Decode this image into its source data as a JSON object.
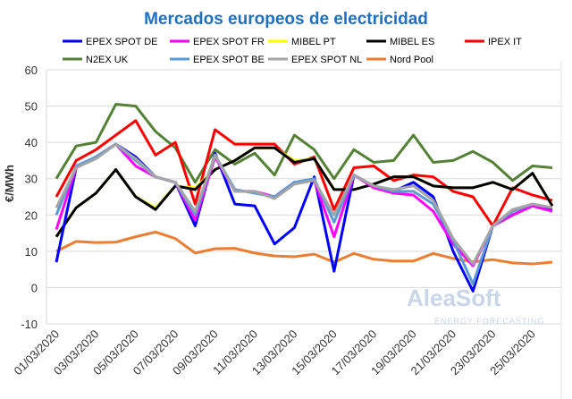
{
  "chart_data": {
    "type": "line",
    "title": "Mercados europeos de electricidad",
    "ylabel": "€/MWh",
    "xlabel": "",
    "ylim": [
      -10,
      60
    ],
    "yticks": [
      -10,
      0,
      10,
      20,
      30,
      40,
      50,
      60
    ],
    "grid": true,
    "legend_placement": "top",
    "x": [
      "01/03/2020",
      "02/03/2020",
      "03/03/2020",
      "04/03/2020",
      "05/03/2020",
      "06/03/2020",
      "07/03/2020",
      "08/03/2020",
      "09/03/2020",
      "10/03/2020",
      "11/03/2020",
      "12/03/2020",
      "13/03/2020",
      "14/03/2020",
      "15/03/2020",
      "16/03/2020",
      "17/03/2020",
      "18/03/2020",
      "19/03/2020",
      "20/03/2020",
      "21/03/2020",
      "22/03/2020",
      "23/03/2020",
      "24/03/2020",
      "25/03/2020",
      "26/03/2020"
    ],
    "xtick_labels": [
      "01/03/2020",
      "03/03/2020",
      "05/03/2020",
      "07/03/2020",
      "09/03/2020",
      "11/03/2020",
      "13/03/2020",
      "15/03/2020",
      "17/03/2020",
      "19/03/2020",
      "21/03/2020",
      "23/03/2020",
      "25/03/2020"
    ],
    "series": [
      {
        "name": "Nord Pool",
        "color": "#ed7d31",
        "values": [
          10,
          12.7,
          12.4,
          12.5,
          14,
          15.3,
          13.5,
          9.5,
          10.7,
          10.8,
          9.5,
          8.7,
          8.5,
          9.2,
          7,
          9.4,
          7.8,
          7.3,
          7.3,
          9.4,
          8,
          7.1,
          7.7,
          6.8,
          6.5,
          7
        ]
      },
      {
        "name": "N2EX UK",
        "color": "#548235",
        "values": [
          30,
          39,
          40,
          50.5,
          50,
          43,
          38.5,
          29,
          38,
          34,
          37,
          31,
          42,
          38,
          30,
          38,
          34.5,
          35,
          42,
          34.5,
          35,
          37.5,
          34.5,
          29.5,
          33.5,
          33
        ]
      },
      {
        "name": "IPEX IT",
        "color": "#ff0000",
        "values": [
          25,
          35,
          38,
          42,
          46,
          36.5,
          40,
          23,
          43.5,
          39.5,
          39.5,
          39.5,
          34,
          36,
          21.5,
          33,
          33.5,
          29.5,
          31,
          30.5,
          26.5,
          25,
          17,
          27.5,
          25.5,
          24
        ]
      },
      {
        "name": "MIBEL PT",
        "color": "#ffff00",
        "values": [
          14,
          22,
          26,
          32.5,
          25,
          22,
          28,
          27.5,
          32.5,
          35,
          38.5,
          38.5,
          35,
          35.5,
          27,
          27,
          28.5,
          30.5,
          30.5,
          28,
          27.5,
          27.5,
          29,
          27,
          31.5,
          22.5
        ]
      },
      {
        "name": "MIBEL ES",
        "color": "#000000",
        "values": [
          14,
          22,
          26,
          32.5,
          25,
          21.5,
          28,
          27,
          32.5,
          35,
          38.5,
          38.5,
          34.5,
          35.5,
          27,
          27,
          28.5,
          30.5,
          30.5,
          28,
          27.5,
          27.5,
          29,
          27,
          31.5,
          22.5
        ]
      },
      {
        "name": "EPEX SPOT DE",
        "color": "#0000ff",
        "values": [
          7,
          33,
          36,
          39.5,
          36,
          30.5,
          29,
          17,
          37,
          23,
          22.5,
          12,
          16.5,
          30.5,
          4.5,
          31,
          28,
          26.5,
          29,
          25,
          10,
          -1,
          17,
          20,
          22.5,
          21.5
        ]
      },
      {
        "name": "EPEX SPOT FR",
        "color": "#ff00ff",
        "values": [
          16,
          33,
          36,
          39.5,
          33.5,
          30.5,
          29,
          18.5,
          36,
          26.5,
          26.5,
          25,
          29,
          29.5,
          14,
          31,
          27.5,
          26,
          25.5,
          21,
          12,
          6,
          17,
          20,
          22.5,
          21
        ]
      },
      {
        "name": "EPEX SPOT BE",
        "color": "#5b9bd5",
        "values": [
          20,
          33.5,
          36,
          39.5,
          35,
          30.5,
          29,
          20,
          36.5,
          27,
          26,
          25,
          29,
          30,
          18,
          31,
          28,
          26.5,
          26.5,
          23,
          13,
          1,
          17,
          21,
          23,
          22
        ]
      },
      {
        "name": "EPEX SPOT NL",
        "color": "#a5a5a5",
        "values": [
          22,
          33,
          35.5,
          39.5,
          35.5,
          30.5,
          29,
          21,
          36.5,
          26.5,
          26.5,
          24.5,
          28.5,
          29.5,
          20,
          31,
          28,
          27,
          28,
          24,
          13.5,
          6.5,
          17,
          21.5,
          23,
          22
        ]
      }
    ],
    "legend_order": [
      "EPEX SPOT DE",
      "EPEX SPOT FR",
      "MIBEL PT",
      "MIBEL ES",
      "IPEX IT",
      "N2EX UK",
      "EPEX SPOT BE",
      "EPEX SPOT NL",
      "Nord Pool"
    ]
  },
  "watermark": {
    "brand": "AleaSoft",
    "tagline": "ENERGY FORECASTING"
  }
}
